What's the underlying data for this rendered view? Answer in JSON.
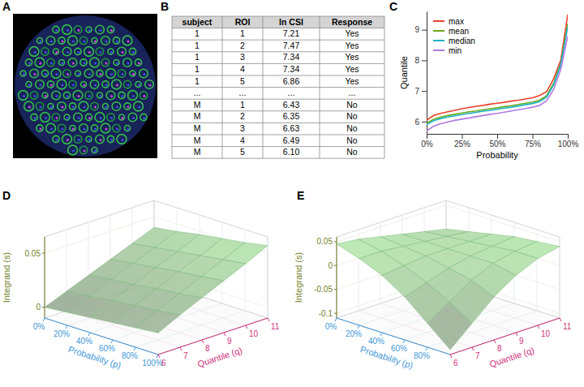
{
  "panel_labels": [
    "A",
    "B",
    "C",
    "D",
    "E"
  ],
  "table": {
    "columns": [
      "subject",
      "ROI",
      "ln CSI",
      "Response"
    ],
    "rows": [
      [
        "1",
        "1",
        "7.21",
        "Yes"
      ],
      [
        "1",
        "2",
        "7.47",
        "Yes"
      ],
      [
        "1",
        "3",
        "7.34",
        "Yes"
      ],
      [
        "1",
        "4",
        "7.34",
        "Yes"
      ],
      [
        "1",
        "5",
        "6.86",
        "Yes"
      ],
      [
        "...",
        "...",
        "...",
        "..."
      ],
      [
        "M",
        "1",
        "6.43",
        "No"
      ],
      [
        "M",
        "2",
        "6.35",
        "No"
      ],
      [
        "M",
        "3",
        "6.63",
        "No"
      ],
      [
        "M",
        "4",
        "6.49",
        "No"
      ],
      [
        "M",
        "5",
        "6.10",
        "No"
      ]
    ]
  },
  "chart_data": [
    {
      "type": "line",
      "xlabel": "Probability",
      "ylabel": "Quantile",
      "legend": "top-left",
      "grid": false,
      "x": [
        0,
        5,
        10,
        15,
        20,
        25,
        30,
        35,
        40,
        45,
        50,
        55,
        60,
        65,
        70,
        75,
        80,
        85,
        90,
        95,
        100
      ],
      "xlim": [
        0,
        100
      ],
      "xticks": [
        {
          "value": 0,
          "label": "0%"
        },
        {
          "value": 25,
          "label": "25%"
        },
        {
          "value": 50,
          "label": "50%"
        },
        {
          "value": 75,
          "label": "75%"
        },
        {
          "value": 100,
          "label": "100%"
        }
      ],
      "ylim": [
        5.6,
        9.6
      ],
      "yticks": [
        6,
        7,
        8,
        9
      ],
      "series": [
        {
          "name": "max",
          "color": "#e8412c",
          "values": [
            6.05,
            6.2,
            6.27,
            6.32,
            6.37,
            6.42,
            6.46,
            6.5,
            6.53,
            6.57,
            6.6,
            6.63,
            6.67,
            6.7,
            6.74,
            6.78,
            6.85,
            6.98,
            7.4,
            8.0,
            9.5
          ]
        },
        {
          "name": "mean",
          "color": "#6aab1e",
          "values": [
            5.95,
            6.08,
            6.15,
            6.2,
            6.24,
            6.28,
            6.32,
            6.35,
            6.39,
            6.42,
            6.45,
            6.49,
            6.52,
            6.56,
            6.6,
            6.64,
            6.7,
            6.85,
            7.25,
            7.9,
            9.2
          ]
        },
        {
          "name": "median",
          "color": "#1fb3c4",
          "values": [
            5.9,
            6.03,
            6.1,
            6.15,
            6.19,
            6.23,
            6.27,
            6.3,
            6.34,
            6.37,
            6.4,
            6.44,
            6.47,
            6.51,
            6.55,
            6.59,
            6.65,
            6.8,
            7.2,
            7.85,
            9.1
          ]
        },
        {
          "name": "min",
          "color": "#b07ae0",
          "values": [
            5.7,
            5.85,
            5.93,
            5.99,
            6.04,
            6.08,
            6.12,
            6.16,
            6.2,
            6.24,
            6.27,
            6.31,
            6.35,
            6.39,
            6.43,
            6.47,
            6.53,
            6.68,
            7.05,
            7.7,
            8.8
          ]
        }
      ]
    },
    {
      "type": "surface",
      "xlabel": "Probability (p)",
      "ylabel": "Quantile (q)",
      "zlabel": "Integrand (s)",
      "x": [
        0,
        20,
        40,
        60,
        80,
        100
      ],
      "y": [
        6,
        7,
        8,
        9,
        10,
        11
      ],
      "z": [
        [
          0.0,
          0.008,
          0.016,
          0.024,
          0.032,
          0.04
        ],
        [
          0.002,
          0.01,
          0.019,
          0.027,
          0.035,
          0.043
        ],
        [
          0.004,
          0.013,
          0.021,
          0.03,
          0.038,
          0.047
        ],
        [
          0.006,
          0.015,
          0.024,
          0.033,
          0.041,
          0.05
        ],
        [
          0.008,
          0.017,
          0.026,
          0.035,
          0.044,
          0.053
        ],
        [
          0.01,
          0.02,
          0.029,
          0.038,
          0.047,
          0.057
        ]
      ],
      "xlim": [
        0,
        100
      ],
      "xticks": [
        {
          "value": 0,
          "label": "0%"
        },
        {
          "value": 20,
          "label": "20%"
        },
        {
          "value": 40,
          "label": "40%"
        },
        {
          "value": 60,
          "label": "60%"
        },
        {
          "value": 80,
          "label": "80%"
        },
        {
          "value": 100,
          "label": "100%"
        }
      ],
      "ylim": [
        6,
        11
      ],
      "yticks": [
        6,
        7,
        8,
        9,
        10,
        11
      ],
      "zlim": [
        -0.01,
        0.065
      ],
      "zticks": [
        0,
        0.05
      ]
    },
    {
      "type": "surface",
      "xlabel": "Probability (p)",
      "ylabel": "Quantile (q)",
      "zlabel": "Integrand (s)",
      "x": [
        0,
        20,
        40,
        60,
        80,
        100
      ],
      "y": [
        6,
        7,
        8,
        9,
        10,
        11
      ],
      "z": [
        [
          0.045,
          0.04,
          0.03,
          0.02,
          0.01,
          0.0
        ],
        [
          0.03,
          0.03,
          0.025,
          0.02,
          0.015,
          0.01
        ],
        [
          0.01,
          0.015,
          0.02,
          0.02,
          0.02,
          0.02
        ],
        [
          -0.02,
          -0.005,
          0.01,
          0.02,
          0.025,
          0.03
        ],
        [
          -0.06,
          -0.03,
          0.0,
          0.02,
          0.03,
          0.035
        ],
        [
          -0.1,
          -0.06,
          -0.02,
          0.01,
          0.03,
          0.04
        ]
      ],
      "xlim": [
        0,
        100
      ],
      "xticks": [
        {
          "value": 0,
          "label": "0%"
        },
        {
          "value": 20,
          "label": "20%"
        },
        {
          "value": 40,
          "label": "40%"
        },
        {
          "value": 60,
          "label": "60%"
        },
        {
          "value": 80,
          "label": "80%"
        }
      ],
      "ylim": [
        6,
        11
      ],
      "yticks": [
        6,
        7,
        8,
        9,
        10,
        11
      ],
      "zlim": [
        -0.11,
        0.06
      ],
      "zticks": [
        -0.1,
        -0.05,
        0,
        0.05
      ]
    }
  ]
}
